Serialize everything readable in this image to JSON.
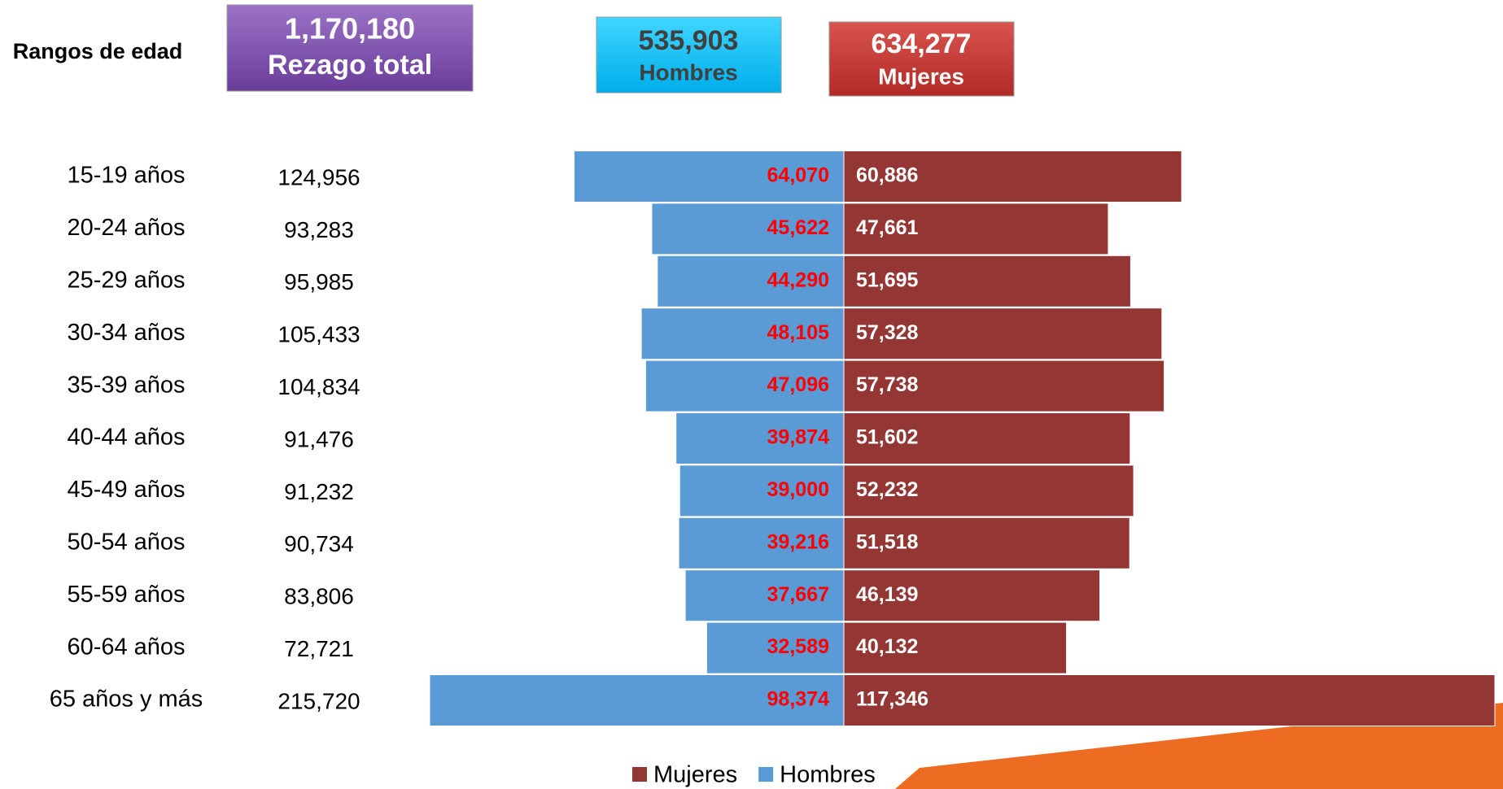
{
  "header": {
    "row_label": "Rangos de edad",
    "total": {
      "value": "1,170,180",
      "label": "Rezago total"
    },
    "men": {
      "value": "535,903",
      "label": "Hombres"
    },
    "women": {
      "value": "634,277",
      "label": "Mujeres"
    }
  },
  "chart_data": {
    "type": "pyramid",
    "categories": [
      "15-19 años",
      "20-24 años",
      "25-29 años",
      "30-34 años",
      "35-39 años",
      "40-44 años",
      "45-49 años",
      "50-54 años",
      "55-59 años",
      "60-64 años",
      "65 años y más"
    ],
    "totals": [
      "124,956",
      "93,283",
      "95,985",
      "105,433",
      "104,834",
      "91,476",
      "91,232",
      "90,734",
      "83,806",
      "72,721",
      "215,720"
    ],
    "series": [
      {
        "name": "Mujeres",
        "color": "#943634",
        "side": "right",
        "values": [
          60886,
          47661,
          51695,
          57328,
          57738,
          51602,
          52232,
          51518,
          46139,
          40132,
          117346
        ],
        "value_labels": [
          "60,886",
          "47,661",
          "51,695",
          "57,328",
          "57,738",
          "51,602",
          "52,232",
          "51,518",
          "46,139",
          "40,132",
          "117,346"
        ]
      },
      {
        "name": "Hombres",
        "color": "#5b9bd5",
        "side": "left",
        "values": [
          64070,
          45622,
          44290,
          48105,
          47096,
          39874,
          39000,
          39216,
          37667,
          32589,
          98374
        ],
        "value_labels": [
          "64,070",
          "45,622",
          "44,290",
          "48,105",
          "47,096",
          "39,874",
          "39,000",
          "39,216",
          "37,667",
          "32,589",
          "98,374"
        ]
      }
    ]
  }
}
